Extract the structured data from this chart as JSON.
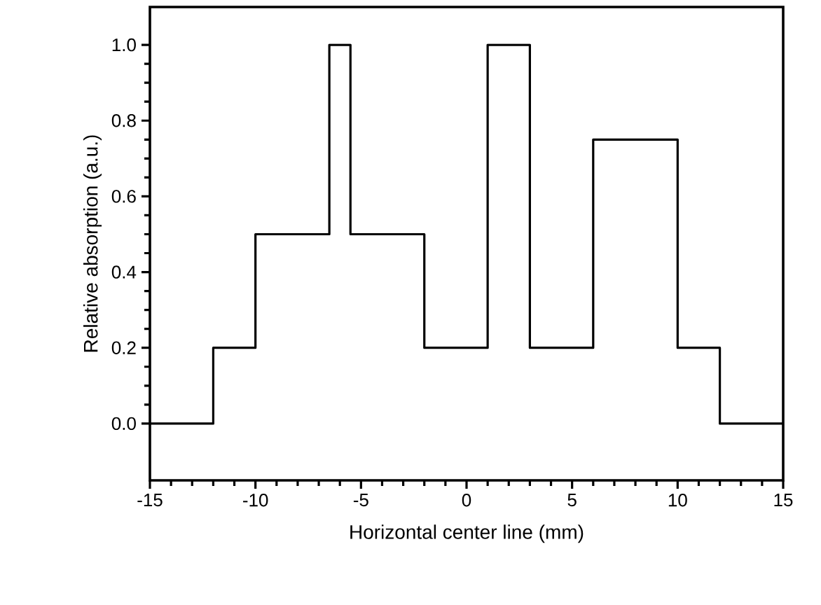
{
  "chart_data": {
    "type": "step",
    "xlabel": "Horizontal center line (mm)",
    "ylabel": "Relative absorption (a.u.)",
    "x": [
      -15,
      -12,
      -10,
      -6.5,
      -5.5,
      -2,
      1,
      3,
      6,
      10,
      12,
      15
    ],
    "values": [
      0,
      0.2,
      0.5,
      1,
      0.5,
      0.2,
      1,
      0.2,
      0.75,
      0.2,
      0,
      0
    ],
    "color": "#000000",
    "xlim": [
      -15,
      15
    ],
    "ylim": [
      -0.15,
      1.1
    ],
    "xticks": [
      -15,
      -10,
      -5,
      0,
      5,
      10,
      15
    ],
    "yticks": [
      {
        "value": 0,
        "label": "0.0"
      },
      {
        "value": 0.2,
        "label": "0.2"
      },
      {
        "value": 0.4,
        "label": "0.4"
      },
      {
        "value": 0.6,
        "label": "0.6"
      },
      {
        "value": 0.8,
        "label": "0.8"
      },
      {
        "value": 1.0,
        "label": "1.0"
      }
    ]
  }
}
